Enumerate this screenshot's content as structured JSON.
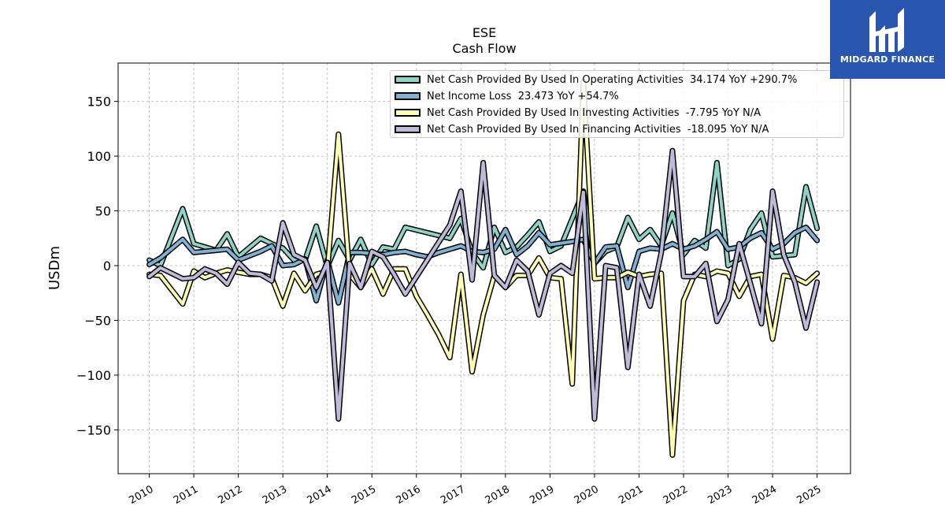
{
  "header": {
    "ticker": "ESE",
    "subtitle": "Cash Flow"
  },
  "logo": {
    "text": "MIDGARD FINANCE",
    "background": "#2a56b0"
  },
  "chart_data": {
    "type": "line",
    "ylabel": "USDm",
    "ylim": [
      -190,
      185
    ],
    "xlim": [
      2009.3,
      2025.75
    ],
    "yticks": [
      150,
      100,
      50,
      0,
      -50,
      -100,
      -150
    ],
    "ytick_labels": [
      "150",
      "100",
      "50",
      "0",
      "−50",
      "−100",
      "−150"
    ],
    "xticks": [
      2010,
      2011,
      2012,
      2013,
      2014,
      2015,
      2016,
      2017,
      2018,
      2019,
      2020,
      2021,
      2022,
      2023,
      2024,
      2025
    ],
    "xtick_labels": [
      "2010",
      "2011",
      "2012",
      "2013",
      "2014",
      "2015",
      "2016",
      "2017",
      "2018",
      "2019",
      "2020",
      "2021",
      "2022",
      "2023",
      "2024",
      "2025"
    ],
    "grid": true,
    "legend_position": "top-right",
    "series": [
      {
        "name": "Net Cash Provided By Used In Operating Activities",
        "legend": "Net Cash Provided By Used In Operating Activities  34.174 YoY +290.7%",
        "color": "#8dd3c7",
        "x": [
          2010.0,
          2010.25,
          2010.75,
          2011.0,
          2011.5,
          2011.75,
          2012.0,
          2012.5,
          2012.75,
          2013.0,
          2013.25,
          2013.5,
          2013.75,
          2014.0,
          2014.25,
          2014.5,
          2014.75,
          2015.0,
          2015.25,
          2015.5,
          2015.75,
          2016.75,
          2017.0,
          2017.25,
          2017.5,
          2017.75,
          2018.0,
          2018.25,
          2018.5,
          2018.75,
          2019.0,
          2019.25,
          2019.75,
          2020.0,
          2020.25,
          2020.5,
          2020.75,
          2021.0,
          2021.25,
          2021.5,
          2021.75,
          2022.0,
          2022.25,
          2022.5,
          2022.75,
          2023.0,
          2023.25,
          2023.5,
          2023.75,
          2024.0,
          2024.5,
          2024.75,
          2025.0
        ],
        "values": [
          5,
          0,
          52,
          20,
          14,
          29,
          8,
          25,
          20,
          16,
          5,
          5,
          36,
          -1,
          23,
          5,
          24,
          1,
          17,
          15,
          35,
          25,
          43,
          12,
          -2,
          35,
          12,
          17,
          28,
          40,
          13,
          18,
          68,
          2,
          13,
          17,
          44,
          24,
          33,
          18,
          48,
          10,
          23,
          16,
          94,
          0,
          6,
          33,
          48,
          8,
          10,
          72,
          34
        ]
      },
      {
        "name": "Net Income Loss",
        "legend": "Net Income Loss  23.473 YoY +54.7%",
        "color": "#80b1d3",
        "x": [
          2010.0,
          2010.25,
          2010.75,
          2011.0,
          2011.5,
          2011.75,
          2012.0,
          2012.5,
          2012.75,
          2013.0,
          2013.25,
          2013.5,
          2013.75,
          2014.0,
          2014.25,
          2014.5,
          2014.75,
          2015.0,
          2015.25,
          2015.5,
          2015.75,
          2016.0,
          2016.25,
          2016.5,
          2016.75,
          2017.0,
          2017.25,
          2017.5,
          2017.75,
          2018.0,
          2018.25,
          2018.5,
          2018.75,
          2019.0,
          2019.5,
          2019.75,
          2020.0,
          2020.25,
          2020.5,
          2020.75,
          2021.0,
          2021.25,
          2021.5,
          2021.75,
          2022.0,
          2022.25,
          2022.5,
          2022.75,
          2023.0,
          2023.25,
          2023.5,
          2023.75,
          2024.0,
          2024.25,
          2024.5,
          2024.75,
          2025.0
        ],
        "values": [
          1,
          7,
          24,
          12,
          14,
          15,
          5,
          13,
          18,
          0,
          1,
          6,
          -32,
          5,
          -34,
          12,
          12,
          11,
          10,
          12,
          13,
          10,
          8,
          12,
          15,
          18,
          13,
          12,
          15,
          33,
          10,
          18,
          30,
          19,
          22,
          24,
          2,
          17,
          18,
          -20,
          13,
          16,
          15,
          20,
          15,
          18,
          24,
          31,
          15,
          17,
          25,
          30,
          15,
          20,
          30,
          35,
          23
        ]
      },
      {
        "name": "Net Cash Provided By Used In Investing Activities",
        "legend": "Net Cash Provided By Used In Investing Activities  -7.795 YoY N/A",
        "color": "#ffffb3",
        "x": [
          2010.0,
          2010.25,
          2010.75,
          2011.0,
          2011.25,
          2011.5,
          2011.75,
          2012.0,
          2012.25,
          2012.5,
          2012.75,
          2013.0,
          2013.25,
          2013.5,
          2013.75,
          2014.0,
          2014.25,
          2014.5,
          2014.75,
          2015.0,
          2015.25,
          2015.5,
          2015.75,
          2016.0,
          2016.25,
          2016.5,
          2016.75,
          2017.0,
          2017.25,
          2017.5,
          2017.75,
          2018.0,
          2018.25,
          2018.5,
          2018.75,
          2019.0,
          2019.25,
          2019.5,
          2019.75,
          2020.0,
          2020.25,
          2020.5,
          2020.75,
          2021.0,
          2021.25,
          2021.5,
          2021.75,
          2022.0,
          2022.25,
          2022.5,
          2022.75,
          2023.0,
          2023.25,
          2023.5,
          2023.75,
          2024.0,
          2024.25,
          2024.5,
          2024.75,
          2025.0
        ],
        "values": [
          -8,
          -9,
          -35,
          -5,
          -11,
          -7,
          -4,
          -6,
          -8,
          -8,
          -11,
          -37,
          -7,
          -23,
          -8,
          -5,
          120,
          -8,
          -20,
          -3,
          -26,
          -3,
          -3,
          -28,
          -45,
          -63,
          -84,
          -8,
          -97,
          -45,
          -9,
          -20,
          -9,
          -9,
          7,
          -11,
          -12,
          -108,
          168,
          -12,
          -11,
          -11,
          -6,
          -10,
          -8,
          -7,
          -173,
          -32,
          -8,
          -10,
          -5,
          -7,
          -28,
          -10,
          -8,
          -67,
          -9,
          -11,
          -16,
          -7
        ]
      },
      {
        "name": "Net Cash Provided By Used In Financing Activities",
        "legend": "Net Cash Provided By Used In Financing Activities  -18.095 YoY N/A",
        "color": "#bebada",
        "x": [
          2010.0,
          2010.25,
          2010.75,
          2011.0,
          2011.25,
          2011.5,
          2011.75,
          2012.0,
          2012.25,
          2012.5,
          2012.75,
          2013.0,
          2013.25,
          2013.5,
          2013.75,
          2014.0,
          2014.25,
          2014.5,
          2014.75,
          2015.0,
          2015.25,
          2015.5,
          2015.75,
          2016.75,
          2017.0,
          2017.25,
          2017.5,
          2017.75,
          2018.0,
          2018.25,
          2018.5,
          2018.75,
          2019.0,
          2019.25,
          2019.5,
          2019.75,
          2020.0,
          2020.25,
          2020.5,
          2020.75,
          2021.0,
          2021.25,
          2021.5,
          2021.75,
          2022.0,
          2022.25,
          2022.5,
          2022.75,
          2023.0,
          2023.25,
          2023.5,
          2023.75,
          2024.0,
          2024.25,
          2024.5,
          2024.75,
          2025.0
        ],
        "values": [
          -10,
          -2,
          -12,
          -11,
          -3,
          -7,
          -17,
          3,
          -7,
          -8,
          -14,
          39,
          10,
          5,
          -20,
          3,
          -140,
          2,
          -20,
          13,
          8,
          -8,
          -26,
          37,
          68,
          -13,
          94,
          -9,
          -20,
          5,
          -5,
          -45,
          -7,
          0,
          -7,
          67,
          -140,
          0,
          -2,
          -93,
          -8,
          -37,
          12,
          105,
          -10,
          -10,
          2,
          -51,
          -31,
          20,
          -16,
          -53,
          68,
          10,
          -15,
          -57,
          -15
        ]
      }
    ]
  }
}
